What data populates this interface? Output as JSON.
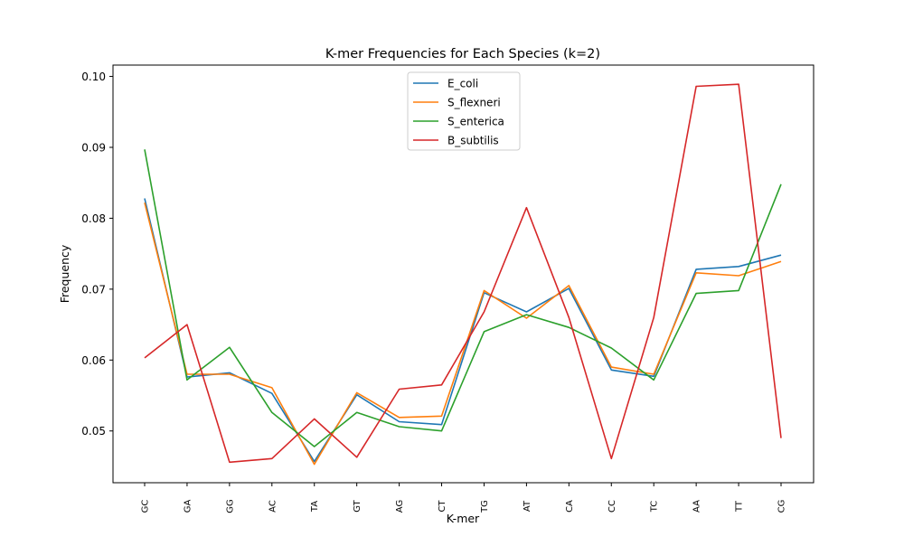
{
  "chart_data": {
    "type": "line",
    "title": "K-mer Frequencies for Each Species (k=2)",
    "xlabel": "K-mer",
    "ylabel": "Frequency",
    "categories": [
      "GC",
      "GA",
      "GG",
      "AC",
      "TA",
      "GT",
      "AG",
      "CT",
      "TG",
      "AT",
      "CA",
      "CC",
      "TC",
      "AA",
      "TT",
      "CG"
    ],
    "ylim": [
      0.0427,
      0.1016
    ],
    "yticks": [
      0.05,
      0.06,
      0.07,
      0.08,
      0.09,
      0.1
    ],
    "ytick_labels": [
      "0.05",
      "0.06",
      "0.07",
      "0.08",
      "0.09",
      "0.10"
    ],
    "grid": false,
    "legend_position": "upper center",
    "series": [
      {
        "name": "E_coli",
        "color": "#1f77b4",
        "values": [
          0.0828,
          0.0576,
          0.0582,
          0.0553,
          0.0457,
          0.0551,
          0.0513,
          0.0509,
          0.0695,
          0.0668,
          0.0701,
          0.0586,
          0.0577,
          0.0728,
          0.0732,
          0.0748
        ]
      },
      {
        "name": "S_flexneri",
        "color": "#ff7f0e",
        "values": [
          0.0822,
          0.058,
          0.058,
          0.0561,
          0.0453,
          0.0554,
          0.0519,
          0.0521,
          0.0698,
          0.0659,
          0.0705,
          0.059,
          0.058,
          0.0723,
          0.0719,
          0.0739
        ]
      },
      {
        "name": "S_enterica",
        "color": "#2ca02c",
        "values": [
          0.0897,
          0.0572,
          0.0618,
          0.0526,
          0.0478,
          0.0526,
          0.0506,
          0.05,
          0.064,
          0.0664,
          0.0646,
          0.0617,
          0.0572,
          0.0694,
          0.0698,
          0.0848
        ]
      },
      {
        "name": "B_subtilis",
        "color": "#d62728",
        "values": [
          0.0603,
          0.065,
          0.0456,
          0.0461,
          0.0517,
          0.0463,
          0.0559,
          0.0565,
          0.0668,
          0.0815,
          0.066,
          0.0461,
          0.066,
          0.0986,
          0.0989,
          0.049
        ]
      }
    ]
  }
}
